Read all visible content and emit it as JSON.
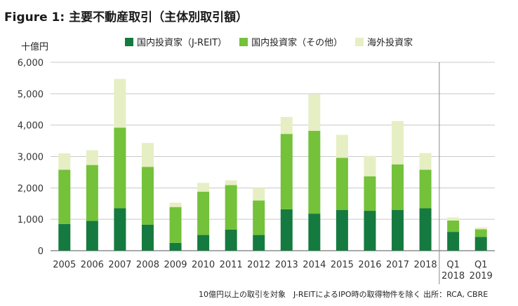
{
  "title": "Figure 1:  主要不動産取引（主体別取引額）",
  "unit_label": "十億円",
  "footer_note": "10億円以上の取引を対象　J-REITによるIPO時の取得物件を除く 出所：RCA, CBRE",
  "colors": {
    "jreit": "#157a3f",
    "other_domestic": "#74c13a",
    "overseas": "#e6efc3",
    "grid": "#c8c8c8",
    "divider": "#8a8a8a"
  },
  "chart_data": {
    "type": "bar",
    "stacked": true,
    "categories": [
      "2005",
      "2006",
      "2007",
      "2008",
      "2009",
      "2010",
      "2011",
      "2012",
      "2013",
      "2014",
      "2015",
      "2016",
      "2017",
      "2018",
      "Q1\n2018",
      "Q1\n2019"
    ],
    "series": [
      {
        "name": "国内投資家（J-REIT）",
        "color_key": "jreit",
        "values": [
          850,
          950,
          1350,
          830,
          250,
          500,
          670,
          500,
          1320,
          1180,
          1300,
          1270,
          1300,
          1350,
          600,
          440
        ]
      },
      {
        "name": "国内投資家（その他）",
        "color_key": "other_domestic",
        "values": [
          1730,
          1780,
          2570,
          1840,
          1140,
          1380,
          1420,
          1100,
          2400,
          2640,
          1660,
          1100,
          1450,
          1230,
          360,
          240
        ]
      },
      {
        "name": "海外投資家",
        "color_key": "overseas",
        "values": [
          520,
          470,
          1550,
          760,
          140,
          280,
          150,
          400,
          540,
          1160,
          730,
          650,
          1380,
          530,
          100,
          60
        ]
      }
    ],
    "y_ticks": [
      "0",
      "1,000",
      "2,000",
      "3,000",
      "4,000",
      "5,000",
      "6,000"
    ],
    "ylim": [
      0,
      6000
    ],
    "divider_after_index": 13,
    "legend_position": "top"
  }
}
